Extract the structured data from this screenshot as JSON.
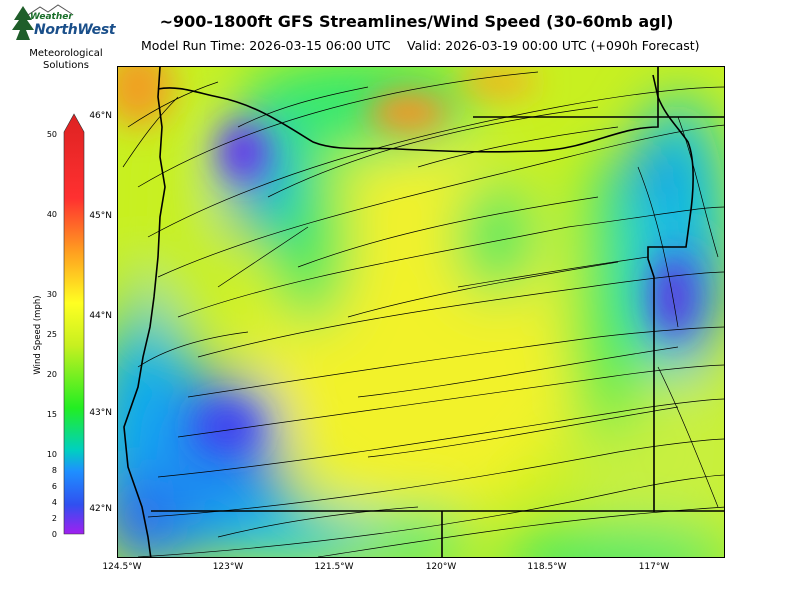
{
  "logo": {
    "word1": "Weather",
    "word2": "NorthWest",
    "subtitle_line1": "Meteorological",
    "subtitle_line2": "Solutions"
  },
  "title": "~900-1800ft GFS Streamlines/Wind Speed (30-60mb agl)",
  "model_run": "Model Run Time: 2026-03-15 06:00 UTC",
  "valid": "Valid: 2026-03-19 00:00 UTC  (+090h Forecast)",
  "map": {
    "lon_range": [
      -124.5,
      -115.9
    ],
    "lat_range": [
      41.5,
      46.5
    ],
    "lat_labels": [
      {
        "text": "46°N",
        "lat": 46
      },
      {
        "text": "45°N",
        "lat": 45
      },
      {
        "text": "44°N",
        "lat": 44
      },
      {
        "text": "43°N",
        "lat": 43
      },
      {
        "text": "42°N",
        "lat": 42
      }
    ],
    "lon_labels": [
      {
        "text": "124.5°W",
        "lon": -124.5
      },
      {
        "text": "123°W",
        "lon": -123
      },
      {
        "text": "121.5°W",
        "lon": -121.5
      },
      {
        "text": "120°W",
        "lon": -120
      },
      {
        "text": "118.5°W",
        "lon": -118.5
      },
      {
        "text": "117°W",
        "lon": -117
      }
    ]
  },
  "colorbar": {
    "title": "Wind Speed (mph)",
    "ticks": [
      "0",
      "2",
      "4",
      "6",
      "8",
      "10",
      "15",
      "20",
      "25",
      "30",
      "40",
      "50"
    ],
    "colors": {
      "low": "#a020f0",
      "mid_blue": "#1e90ff",
      "green": "#22ee22",
      "yellow": "#ffff22",
      "orange": "#ff8c00",
      "red": "#dd2222"
    }
  }
}
